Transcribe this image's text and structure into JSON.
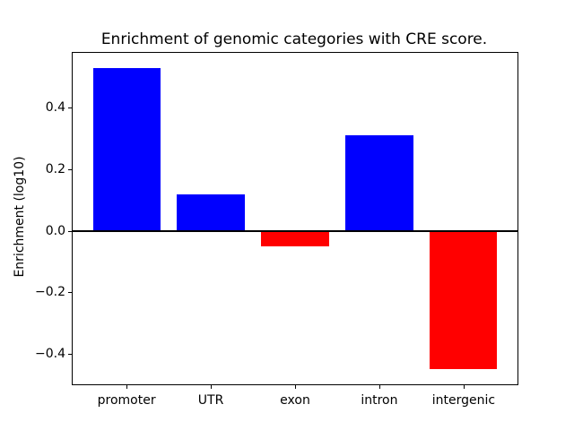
{
  "figure": {
    "background": "#ffffff"
  },
  "chart_data": {
    "type": "bar",
    "title": "Enrichment of genomic categories with CRE score.",
    "ylabel": "Enrichment (log10)",
    "xlabel": "",
    "categories": [
      "promoter",
      "UTR",
      "exon",
      "intron",
      "intergenic"
    ],
    "values": [
      0.53,
      0.12,
      -0.05,
      0.31,
      -0.45
    ],
    "bar_colors": [
      "#0000ff",
      "#0000ff",
      "#ff0000",
      "#0000ff",
      "#ff0000"
    ],
    "positive_color": "#0000ff",
    "negative_color": "#ff0000",
    "yticks": [
      0.4,
      0.2,
      0.0,
      -0.2,
      -0.4
    ],
    "ytick_labels": [
      "0.4",
      "0.2",
      "0.0",
      "−0.2",
      "−0.4"
    ],
    "ylim": [
      -0.499,
      0.579
    ],
    "bar_width_fraction": 0.8,
    "x_margin": 0.64,
    "zero_line": {
      "y": 0,
      "color": "#000000",
      "linewidth": 2
    },
    "grid": false,
    "legend": null,
    "axis_color": "#000000",
    "text_color": "#000000"
  }
}
